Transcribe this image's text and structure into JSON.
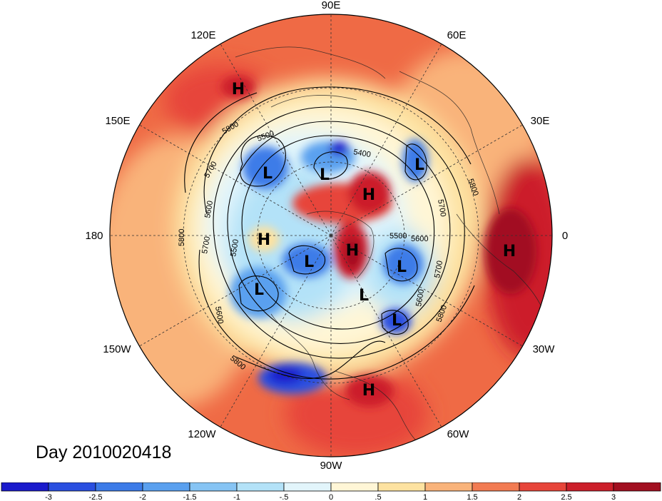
{
  "title": "Day 2010020418",
  "longitude_labels": [
    "90E",
    "60E",
    "30E",
    "0",
    "30W",
    "60W",
    "90W",
    "120W",
    "150W",
    "180",
    "150E",
    "120E"
  ],
  "pressure_centers": [
    {
      "type": "H",
      "label": "H"
    },
    {
      "type": "L",
      "label": "L"
    },
    {
      "type": "L",
      "label": "L"
    },
    {
      "type": "H",
      "label": "H"
    },
    {
      "type": "L",
      "label": "L"
    },
    {
      "type": "H",
      "label": "H"
    },
    {
      "type": "H",
      "label": "H"
    },
    {
      "type": "L",
      "label": "L"
    },
    {
      "type": "H",
      "label": "H"
    },
    {
      "type": "L",
      "label": "L"
    },
    {
      "type": "L",
      "label": "L"
    },
    {
      "type": "L",
      "label": "L"
    },
    {
      "type": "L",
      "label": "L"
    },
    {
      "type": "H",
      "label": "H"
    }
  ],
  "contour_labels": [
    "5800",
    "5500",
    "5400",
    "5700",
    "5600",
    "5800",
    "5500",
    "5700",
    "5800",
    "5700",
    "5600",
    "5500",
    "5600",
    "5700",
    "5800",
    "5600",
    "5800"
  ],
  "colorbar": {
    "ticks": [
      "-3",
      "-2.5",
      "-2",
      "-1.5",
      "-1",
      "-.5",
      "0",
      ".5",
      "1",
      "1.5",
      "2",
      "2.5",
      "3"
    ],
    "colors": [
      "#1a1acc",
      "#2a4fe0",
      "#3c7be8",
      "#5aa0ef",
      "#86c4f4",
      "#b3e2f8",
      "#e2f5fb",
      "#fff6d6",
      "#fde2a0",
      "#f9b37a",
      "#f27b52",
      "#e7453a",
      "#cc1f2a",
      "#a20f20"
    ]
  }
}
